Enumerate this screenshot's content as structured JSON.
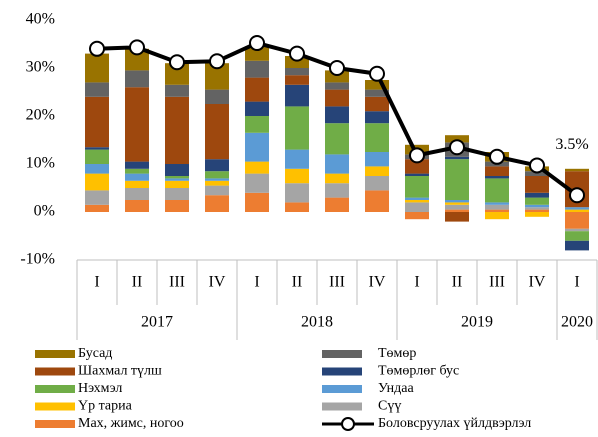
{
  "chart_data": {
    "type": "stacked_bar_line",
    "categories": [
      "I",
      "II",
      "III",
      "IV",
      "I",
      "II",
      "III",
      "IV",
      "I",
      "II",
      "III",
      "IV",
      "I"
    ],
    "years": [
      "2017",
      "2018",
      "2019",
      "2020"
    ],
    "year_spans": [
      4,
      4,
      4,
      1
    ],
    "ylim": [
      -10,
      40
    ],
    "yticks": [
      {
        "value": -10,
        "label": "-10%"
      },
      {
        "value": 0,
        "label": "0%"
      },
      {
        "value": 10,
        "label": "10%"
      },
      {
        "value": 20,
        "label": "20%"
      },
      {
        "value": 30,
        "label": "30%"
      },
      {
        "value": 40,
        "label": "40%"
      }
    ],
    "series": [
      {
        "name": "Бусад",
        "color": "#997300",
        "values": [
          6,
          4.5,
          4.5,
          5.5,
          3,
          2.5,
          2.5,
          2,
          2,
          1.5,
          2,
          1,
          0.5
        ]
      },
      {
        "name": "Төмөр",
        "color": "#636363",
        "values": [
          3,
          3.5,
          2.5,
          3,
          3.5,
          1.5,
          1.5,
          1.5,
          1,
          3,
          1,
          1,
          0
        ]
      },
      {
        "name": "Шахмал түлш",
        "color": "#9E480E",
        "values": [
          10.5,
          15.5,
          14,
          11.5,
          5,
          2,
          3.5,
          3,
          3,
          -2,
          2,
          3.5,
          7.5
        ]
      },
      {
        "name": "Төмөрлөг бус",
        "color": "#264478",
        "values": [
          0.5,
          1.5,
          2.5,
          2.5,
          3,
          4.5,
          3.5,
          2.5,
          0.5,
          0.5,
          0.5,
          1,
          -2
        ]
      },
      {
        "name": "Нэхмэл",
        "color": "#70AD47",
        "values": [
          3,
          1,
          0.5,
          1.5,
          3.5,
          9,
          6.5,
          6,
          4.5,
          8.5,
          5,
          1.5,
          -2
        ]
      },
      {
        "name": "Ундаа",
        "color": "#5B9BD5",
        "values": [
          2,
          1.5,
          0.5,
          0.5,
          6,
          4,
          4,
          3,
          0.5,
          0.5,
          0.5,
          0.5,
          0.5
        ]
      },
      {
        "name": "Үр тариа",
        "color": "#FFC000",
        "values": [
          3.5,
          1.5,
          1.5,
          1,
          2.5,
          3,
          2,
          2,
          0.5,
          0.5,
          -1.5,
          -1,
          0.5
        ]
      },
      {
        "name": "Сүү",
        "color": "#A5A5A5",
        "values": [
          3,
          2.5,
          2.5,
          2,
          4,
          4,
          3,
          3,
          2,
          1,
          1,
          0.5,
          -0.5
        ]
      },
      {
        "name": "Мах, жимс, ногоо",
        "color": "#ED7D31",
        "values": [
          1.5,
          2.5,
          2.5,
          3.5,
          4,
          2,
          3,
          4.5,
          -1.5,
          0.5,
          0.5,
          0.5,
          -3.5
        ]
      }
    ],
    "line": {
      "name": "Боловсруулах үйлдвэрлэл",
      "color": "#000000",
      "values": [
        34,
        34.3,
        31.2,
        31.4,
        35.2,
        33,
        30,
        28.8,
        11.8,
        13.5,
        11.5,
        9.7,
        3.5
      ],
      "value_labels": [
        null,
        null,
        null,
        null,
        null,
        null,
        null,
        null,
        null,
        null,
        null,
        null,
        "3.5%"
      ]
    }
  }
}
